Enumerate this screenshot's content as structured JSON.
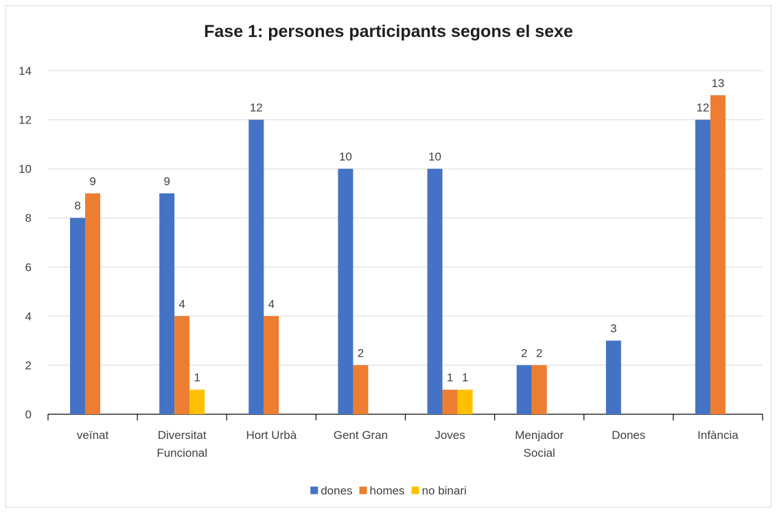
{
  "chart_data": {
    "type": "bar",
    "title": "Fase 1: persones participants segons el sexe",
    "xlabel": "",
    "ylabel": "",
    "ylim": [
      0,
      14
    ],
    "yticks": [
      0,
      2,
      4,
      6,
      8,
      10,
      12,
      14
    ],
    "grid": true,
    "legend_position": "bottom",
    "categories": [
      [
        "veïnat"
      ],
      [
        "Diversitat",
        "Funcional"
      ],
      [
        "Hort Urbà"
      ],
      [
        "Gent Gran"
      ],
      [
        "Joves"
      ],
      [
        "Menjador",
        "Social"
      ],
      [
        "Dones"
      ],
      [
        "Infància"
      ]
    ],
    "series": [
      {
        "name": "dones",
        "color": "#4472C4",
        "values": [
          8,
          9,
          12,
          10,
          10,
          2,
          3,
          12
        ]
      },
      {
        "name": "homes",
        "color": "#ED7D31",
        "values": [
          9,
          4,
          4,
          2,
          1,
          2,
          null,
          13
        ]
      },
      {
        "name": "no binari",
        "color": "#FFC000",
        "values": [
          null,
          1,
          null,
          null,
          1,
          null,
          null,
          null
        ]
      }
    ]
  }
}
